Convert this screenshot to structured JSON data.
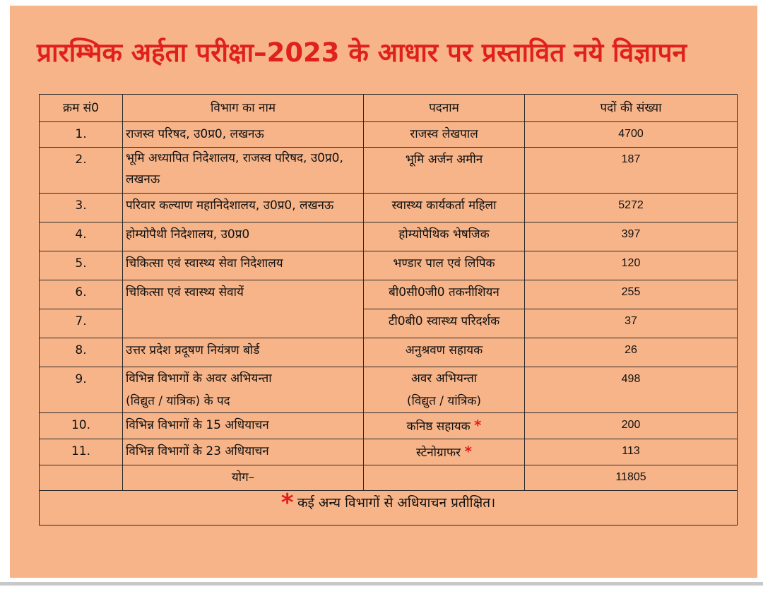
{
  "title": "प्रारम्भिक अर्हता परीक्षा–2023 के आधार पर प्रस्तावित नये विज्ञापन",
  "table": {
    "headers": {
      "serial": "क्रम सं0",
      "department": "विभाग का नाम",
      "post": "पदनाम",
      "count": "पदों की संख्या"
    },
    "rows": [
      {
        "serial": "1.",
        "department": "राजस्व परिषद, उ0प्र0, लखनऊ",
        "post": "राजस्व लेखपाल",
        "count": "4700"
      },
      {
        "serial": "2.",
        "department": "भूमि अध्यापित निदेशालय, राजस्व परिषद, उ0प्र0, लखनऊ",
        "post": "भूमि अर्जन अमीन",
        "count": "187"
      },
      {
        "serial": "3.",
        "department": "परिवार कल्याण महानिदेशालय, उ0प्र0, लखनऊ",
        "post": "स्वास्थ्य कार्यकर्ता महिला",
        "count": "5272"
      },
      {
        "serial": "4.",
        "department": "होम्योपैथी निदेशालय, उ0प्र0",
        "post": "होम्योपैथिक भेषजिक",
        "count": "397"
      },
      {
        "serial": "5.",
        "department": "चिकित्सा एवं स्वास्थ्य सेवा निदेशालय",
        "post": "भण्डार पाल एवं लिपिक",
        "count": "120"
      },
      {
        "serial": "6.",
        "department": "चिकित्सा एवं स्वास्थ्य सेवायें",
        "post": "बी0सी0जी0 तकनीशियन",
        "count": "255"
      },
      {
        "serial": "7.",
        "post": "टी0बी0 स्वास्थ्य परिदर्शक",
        "count": "37"
      },
      {
        "serial": "8.",
        "department": "उत्तर प्रदेश प्रदूषण नियंत्रण बोर्ड",
        "post": "अनुश्रवण सहायक",
        "count": "26"
      },
      {
        "serial": "9.",
        "department_line1": "विभिन्न विभागों के अवर अभियन्ता",
        "department_line2": "(विद्युत / यांत्रिक) के पद",
        "post_line1": "अवर अभियन्ता",
        "post_line2": "(विद्युत / यांत्रिक)",
        "count": "498"
      },
      {
        "serial": "10.",
        "department": "विभिन्न विभागों के 15 अधियाचन",
        "post": "कनिष्ठ सहायक",
        "mark": "*",
        "count": "200"
      },
      {
        "serial": "11.",
        "department": "विभिन्न विभागों के 23 अधियाचन",
        "post": "स्टेनोग्राफर",
        "mark": "*",
        "count": "113"
      }
    ],
    "total": {
      "label": "योग–",
      "count": "11805"
    },
    "note": {
      "mark": "*",
      "text": "कई अन्य विभागों से अधियाचन प्रतीक्षित।"
    }
  },
  "colors": {
    "background": "#f7b489",
    "title": "#e0201c",
    "border": "#2a2a2a"
  }
}
